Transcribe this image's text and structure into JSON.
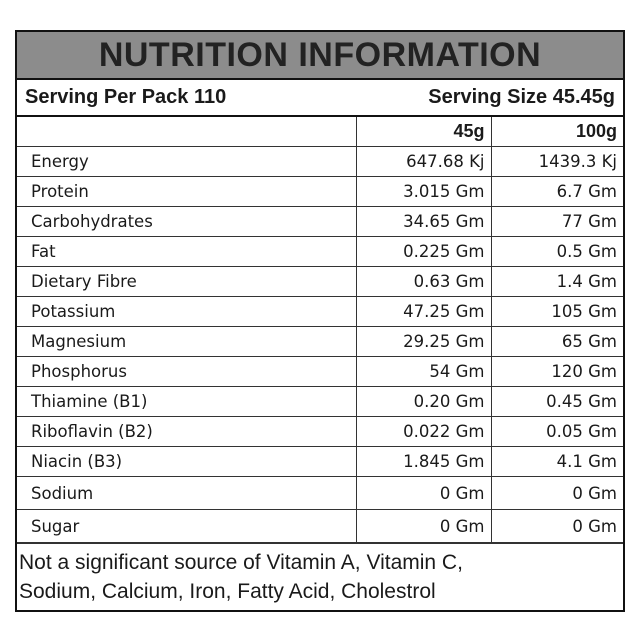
{
  "header": {
    "title": "NUTRITION INFORMATION"
  },
  "serving": {
    "per_pack": "Serving Per Pack 110",
    "size": "Serving Size 45.45g"
  },
  "table": {
    "columns": [
      "45g",
      "100g"
    ],
    "rows": [
      [
        "Energy",
        "647.68 Kj",
        "1439.3 Kj"
      ],
      [
        "Protein",
        "3.015 Gm",
        "6.7 Gm"
      ],
      [
        "Carbohydrates",
        "34.65 Gm",
        "77 Gm"
      ],
      [
        "Fat",
        "0.225 Gm",
        "0.5 Gm"
      ],
      [
        "Dietary Fibre",
        "0.63 Gm",
        "1.4 Gm"
      ],
      [
        "Potassium",
        "47.25 Gm",
        "105 Gm"
      ],
      [
        "Magnesium",
        "29.25 Gm",
        "65 Gm"
      ],
      [
        "Phosphorus",
        "54 Gm",
        "120 Gm"
      ],
      [
        "Thiamine (B1)",
        "0.20 Gm",
        "0.45 Gm"
      ],
      [
        "Riboflavin (B2)",
        "0.022 Gm",
        "0.05 Gm"
      ],
      [
        "Niacin (B3)",
        "1.845 Gm",
        "4.1 Gm"
      ],
      [
        "Sodium",
        "0 Gm",
        "0 Gm"
      ],
      [
        "Sugar",
        "0 Gm",
        "0 Gm"
      ]
    ]
  },
  "footer": {
    "lines": [
      "Not a significant source of Vitamin A, Vitamin C,",
      "Sodium, Calcium, Iron, Fatty Acid, Cholestrol"
    ]
  }
}
